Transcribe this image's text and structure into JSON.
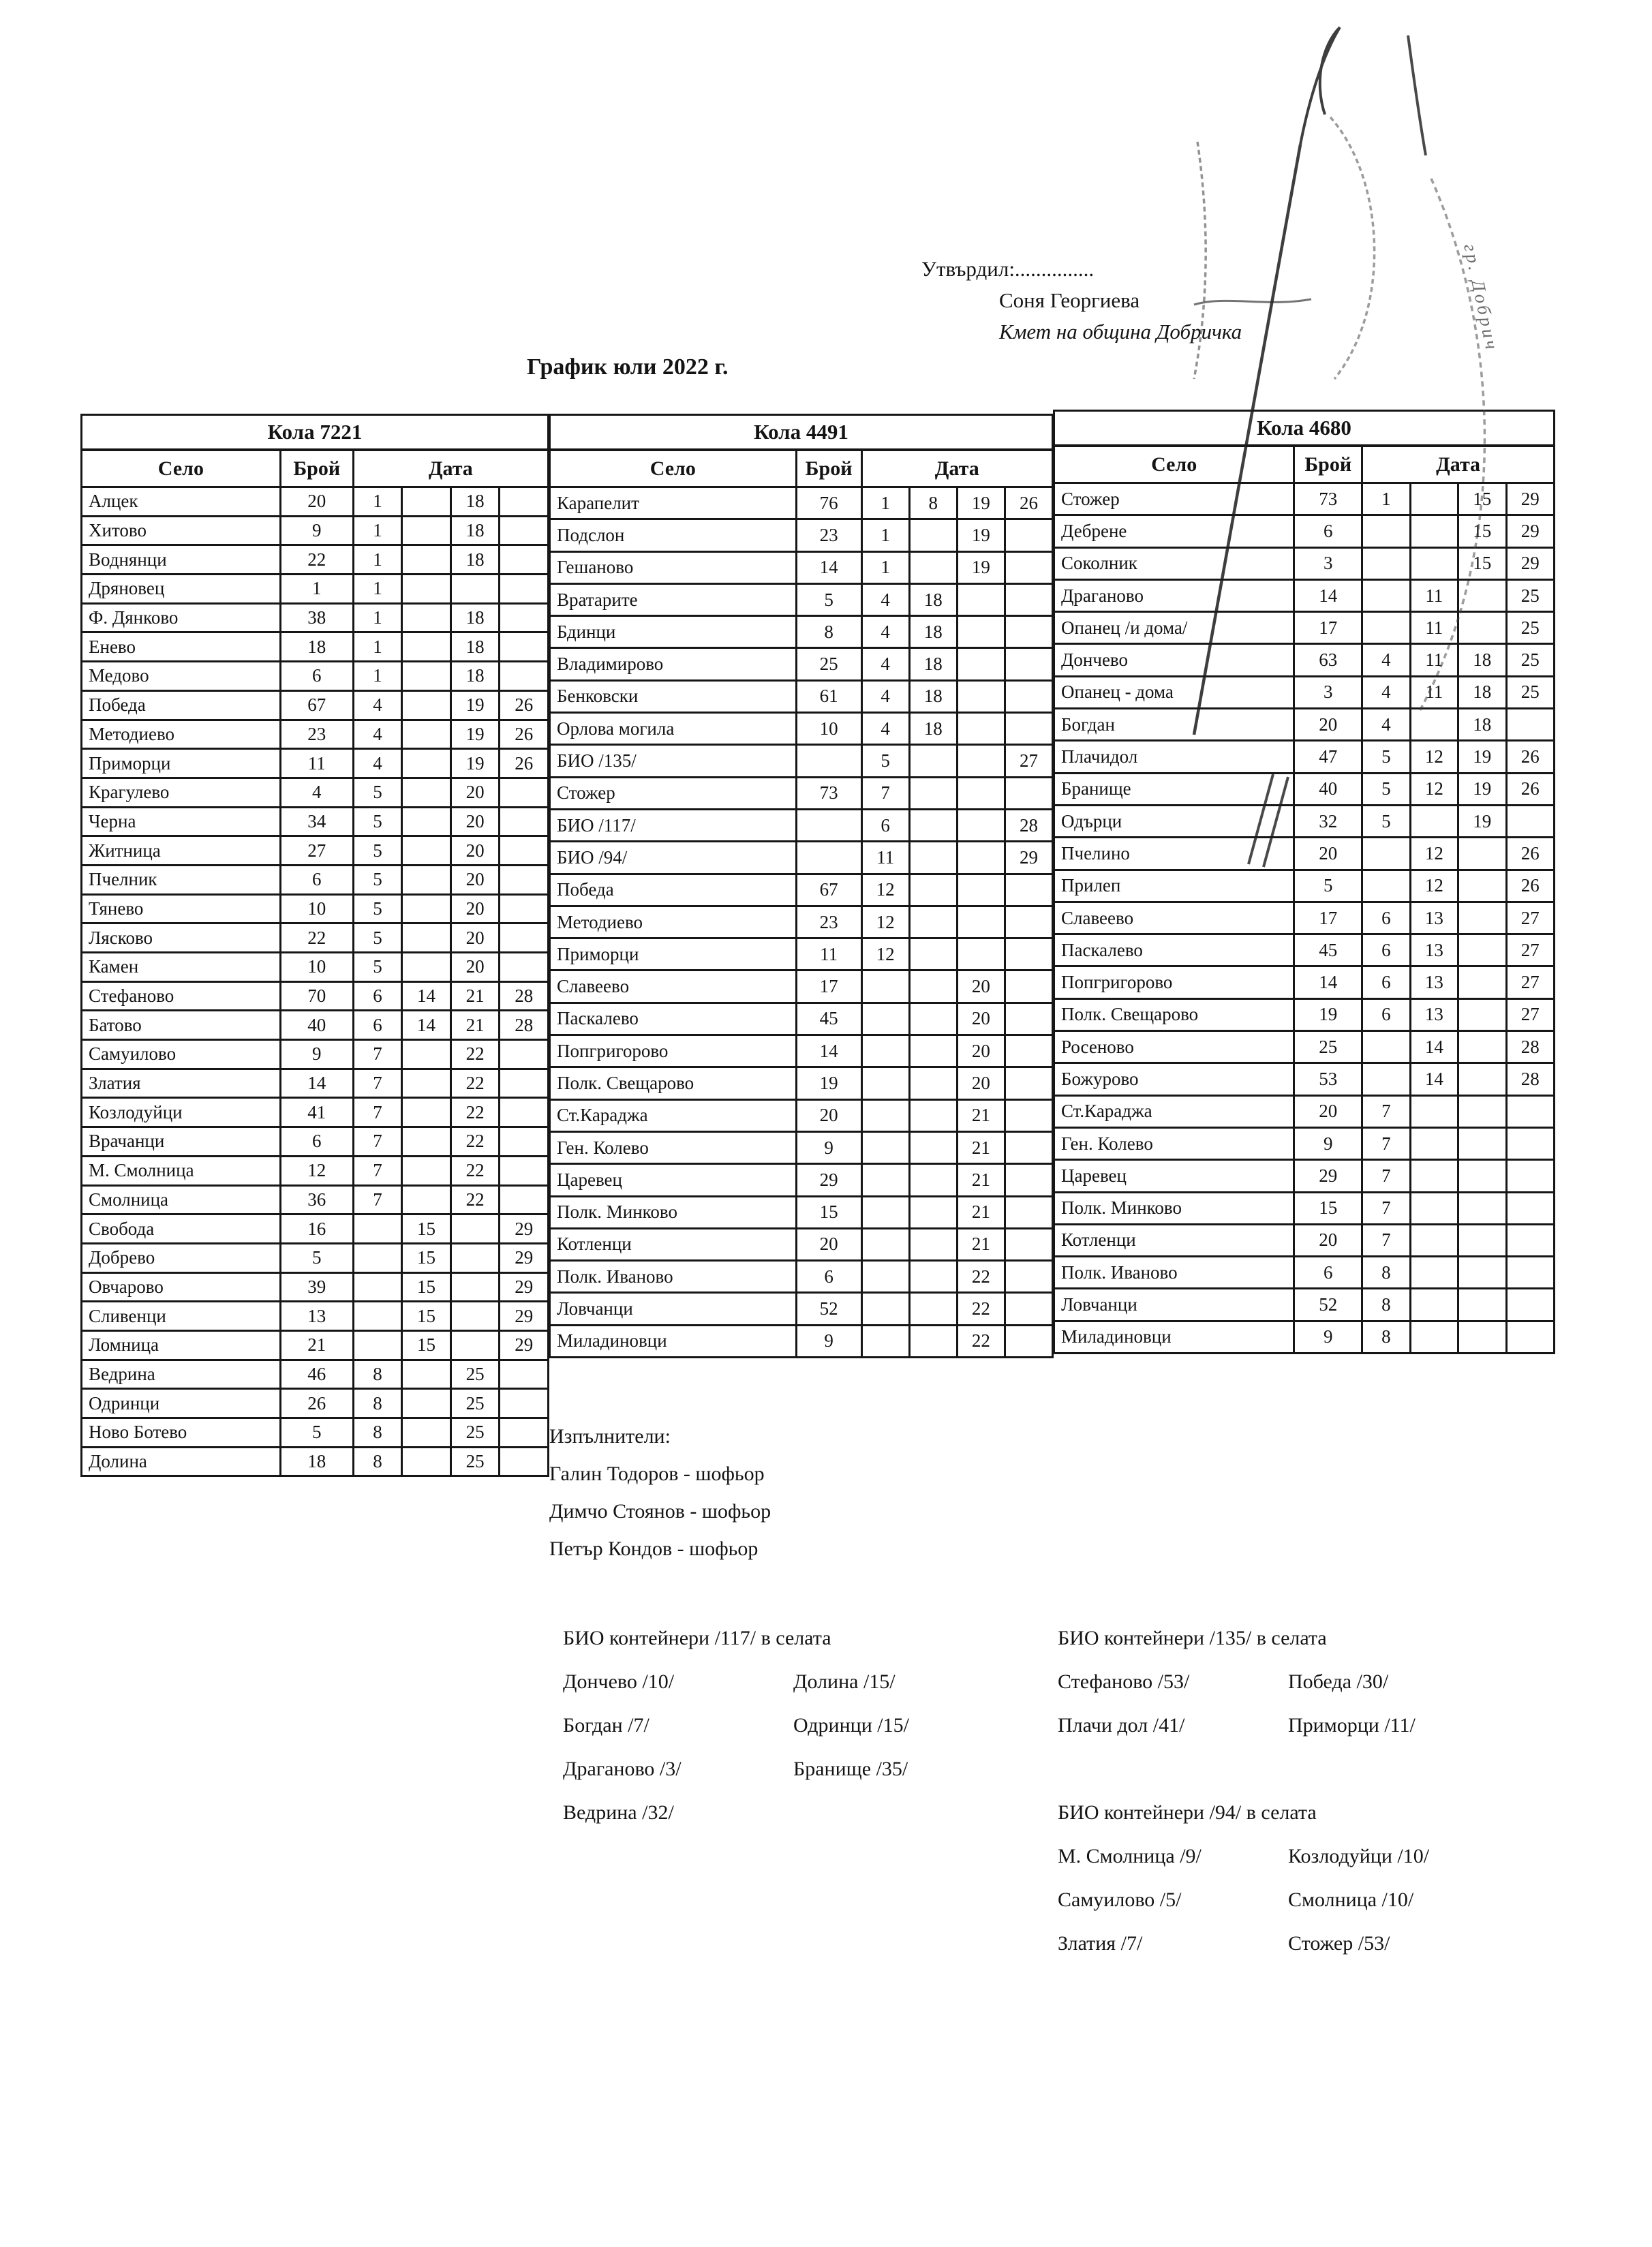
{
  "header": {
    "approved_label": "Утвърдил:...............",
    "approver_name": "Соня Георгиева",
    "approver_title": "Кмет  на община Добричка",
    "title": "График юли 2022 г.",
    "stamp_text": "гр. Добрич"
  },
  "tables": [
    {
      "title": "Кола 7221",
      "col_village": "Село",
      "col_count": "Брой",
      "col_date": "Дата",
      "rows": [
        [
          "Алцек",
          "20",
          "1",
          "",
          "18",
          ""
        ],
        [
          "Хитово",
          "9",
          "1",
          "",
          "18",
          ""
        ],
        [
          "Воднянци",
          "22",
          "1",
          "",
          "18",
          ""
        ],
        [
          "Дряновец",
          "1",
          "1",
          "",
          "",
          ""
        ],
        [
          "Ф. Дянково",
          "38",
          "1",
          "",
          "18",
          ""
        ],
        [
          "Енево",
          "18",
          "1",
          "",
          "18",
          ""
        ],
        [
          "Медово",
          "6",
          "1",
          "",
          "18",
          ""
        ],
        [
          "Победа",
          "67",
          "4",
          "",
          "19",
          "26"
        ],
        [
          "Методиево",
          "23",
          "4",
          "",
          "19",
          "26"
        ],
        [
          "Приморци",
          "11",
          "4",
          "",
          "19",
          "26"
        ],
        [
          "Крагулево",
          "4",
          "5",
          "",
          "20",
          ""
        ],
        [
          "Черна",
          "34",
          "5",
          "",
          "20",
          ""
        ],
        [
          "Житница",
          "27",
          "5",
          "",
          "20",
          ""
        ],
        [
          "Пчелник",
          "6",
          "5",
          "",
          "20",
          ""
        ],
        [
          "Тянево",
          "10",
          "5",
          "",
          "20",
          ""
        ],
        [
          "Лясково",
          "22",
          "5",
          "",
          "20",
          ""
        ],
        [
          "Камен",
          "10",
          "5",
          "",
          "20",
          ""
        ],
        [
          "Стефаново",
          "70",
          "6",
          "14",
          "21",
          "28"
        ],
        [
          "Батово",
          "40",
          "6",
          "14",
          "21",
          "28"
        ],
        [
          "Самуилово",
          "9",
          "7",
          "",
          "22",
          ""
        ],
        [
          "Златия",
          "14",
          "7",
          "",
          "22",
          ""
        ],
        [
          "Козлодуйци",
          "41",
          "7",
          "",
          "22",
          ""
        ],
        [
          "Врачанци",
          "6",
          "7",
          "",
          "22",
          ""
        ],
        [
          "М. Смолница",
          "12",
          "7",
          "",
          "22",
          ""
        ],
        [
          "Смолница",
          "36",
          "7",
          "",
          "22",
          ""
        ],
        [
          "Свобода",
          "16",
          "",
          "15",
          "",
          "29"
        ],
        [
          "Добрево",
          "5",
          "",
          "15",
          "",
          "29"
        ],
        [
          "Овчарово",
          "39",
          "",
          "15",
          "",
          "29"
        ],
        [
          "Сливенци",
          "13",
          "",
          "15",
          "",
          "29"
        ],
        [
          "Ломница",
          "21",
          "",
          "15",
          "",
          "29"
        ],
        [
          "Ведрина",
          "46",
          "8",
          "",
          "25",
          ""
        ],
        [
          "Одринци",
          "26",
          "8",
          "",
          "25",
          ""
        ],
        [
          "Ново Ботево",
          "5",
          "8",
          "",
          "25",
          ""
        ],
        [
          "Долина",
          "18",
          "8",
          "",
          "25",
          ""
        ]
      ]
    },
    {
      "title": "Кола 4491",
      "col_village": "Село",
      "col_count": "Брой",
      "col_date": "Дата",
      "rows": [
        [
          "Карапелит",
          "76",
          "1",
          "8",
          "19",
          "26"
        ],
        [
          "Подслон",
          "23",
          "1",
          "",
          "19",
          ""
        ],
        [
          "Гешаново",
          "14",
          "1",
          "",
          "19",
          ""
        ],
        [
          "Вратарите",
          "5",
          "4",
          "18",
          "",
          ""
        ],
        [
          "Бдинци",
          "8",
          "4",
          "18",
          "",
          ""
        ],
        [
          "Владимирово",
          "25",
          "4",
          "18",
          "",
          ""
        ],
        [
          "Бенковски",
          "61",
          "4",
          "18",
          "",
          ""
        ],
        [
          "Орлова могила",
          "10",
          "4",
          "18",
          "",
          ""
        ],
        [
          "БИО /135/",
          "",
          "5",
          "",
          "",
          "27"
        ],
        [
          "Стожер",
          "73",
          "7",
          "",
          "",
          ""
        ],
        [
          "БИО /117/",
          "",
          "6",
          "",
          "",
          "28"
        ],
        [
          "БИО /94/",
          "",
          "11",
          "",
          "",
          "29"
        ],
        [
          "Победа",
          "67",
          "12",
          "",
          "",
          ""
        ],
        [
          "Методиево",
          "23",
          "12",
          "",
          "",
          ""
        ],
        [
          "Приморци",
          "11",
          "12",
          "",
          "",
          ""
        ],
        [
          "Славеево",
          "17",
          "",
          "",
          "20",
          ""
        ],
        [
          "Паскалево",
          "45",
          "",
          "",
          "20",
          ""
        ],
        [
          "Попгригорово",
          "14",
          "",
          "",
          "20",
          ""
        ],
        [
          "Полк. Свещарово",
          "19",
          "",
          "",
          "20",
          ""
        ],
        [
          "Ст.Караджа",
          "20",
          "",
          "",
          "21",
          ""
        ],
        [
          "Ген. Колево",
          "9",
          "",
          "",
          "21",
          ""
        ],
        [
          "Царевец",
          "29",
          "",
          "",
          "21",
          ""
        ],
        [
          "Полк. Минково",
          "15",
          "",
          "",
          "21",
          ""
        ],
        [
          "Котленци",
          "20",
          "",
          "",
          "21",
          ""
        ],
        [
          "Полк. Иваново",
          "6",
          "",
          "",
          "22",
          ""
        ],
        [
          "Ловчанци",
          "52",
          "",
          "",
          "22",
          ""
        ],
        [
          "Миладиновци",
          "9",
          "",
          "",
          "22",
          ""
        ]
      ]
    },
    {
      "title": "Кола 4680",
      "col_village": "Село",
      "col_count": "Брой",
      "col_date": "Дата",
      "rows": [
        [
          "Стожер",
          "73",
          "1",
          "",
          "15",
          "29"
        ],
        [
          "Дебрене",
          "6",
          "",
          "",
          "15",
          "29"
        ],
        [
          "Соколник",
          "3",
          "",
          "",
          "15",
          "29"
        ],
        [
          "Драганово",
          "14",
          "",
          "11",
          "",
          "25"
        ],
        [
          "Опанец /и дома/",
          "17",
          "",
          "11",
          "",
          "25"
        ],
        [
          "Дончево",
          "63",
          "4",
          "11",
          "18",
          "25"
        ],
        [
          "Опанец - дома",
          "3",
          "4",
          "11",
          "18",
          "25"
        ],
        [
          "Богдан",
          "20",
          "4",
          "",
          "18",
          ""
        ],
        [
          "Плачидол",
          "47",
          "5",
          "12",
          "19",
          "26"
        ],
        [
          "Бранище",
          "40",
          "5",
          "12",
          "19",
          "26"
        ],
        [
          "Одърци",
          "32",
          "5",
          "",
          "19",
          ""
        ],
        [
          "Пчелино",
          "20",
          "",
          "12",
          "",
          "26"
        ],
        [
          "Прилеп",
          "5",
          "",
          "12",
          "",
          "26"
        ],
        [
          "Славеево",
          "17",
          "6",
          "13",
          "",
          "27"
        ],
        [
          "Паскалево",
          "45",
          "6",
          "13",
          "",
          "27"
        ],
        [
          "Попгригорово",
          "14",
          "6",
          "13",
          "",
          "27"
        ],
        [
          "Полк. Свещарово",
          "19",
          "6",
          "13",
          "",
          "27"
        ],
        [
          "Росеново",
          "25",
          "",
          "14",
          "",
          "28"
        ],
        [
          "Божурово",
          "53",
          "",
          "14",
          "",
          "28"
        ],
        [
          "Ст.Караджа",
          "20",
          "7",
          "",
          "",
          ""
        ],
        [
          "Ген. Колево",
          "9",
          "7",
          "",
          "",
          ""
        ],
        [
          "Царевец",
          "29",
          "7",
          "",
          "",
          ""
        ],
        [
          "Полк. Минково",
          "15",
          "7",
          "",
          "",
          ""
        ],
        [
          "Котленци",
          "20",
          "7",
          "",
          "",
          ""
        ],
        [
          "Полк. Иваново",
          "6",
          "8",
          "",
          "",
          ""
        ],
        [
          "Ловчанци",
          "52",
          "8",
          "",
          "",
          ""
        ],
        [
          "Миладиновци",
          "9",
          "8",
          "",
          "",
          ""
        ]
      ]
    }
  ],
  "executors": {
    "heading": "Изпълнители:",
    "items": [
      "Галин Тодоров - шофьор",
      "Димчо Стоянов - шофьор",
      "Петър Кондов - шофьор"
    ]
  },
  "bio_sections": [
    {
      "heading": "БИО контейнери /117/ в селата",
      "left": [
        "Дончево /10/",
        "Богдан /7/",
        "Драганово /3/",
        "Ведрина /32/"
      ],
      "right": [
        "Долина /15/",
        "Одринци /15/",
        "Бранище /35/"
      ]
    },
    {
      "heading": "БИО контейнери /135/ в селата",
      "left": [
        "Стефаново /53/",
        "Плачи дол /41/"
      ],
      "right": [
        "Победа /30/",
        "Приморци /11/"
      ]
    },
    {
      "heading": "БИО контейнери /94/ в селата",
      "left": [
        "М. Смолница /9/",
        "Самуилово /5/",
        "Златия /7/"
      ],
      "right": [
        "Козлодуйци /10/",
        "Смолница /10/",
        "Стожер /53/"
      ]
    }
  ]
}
